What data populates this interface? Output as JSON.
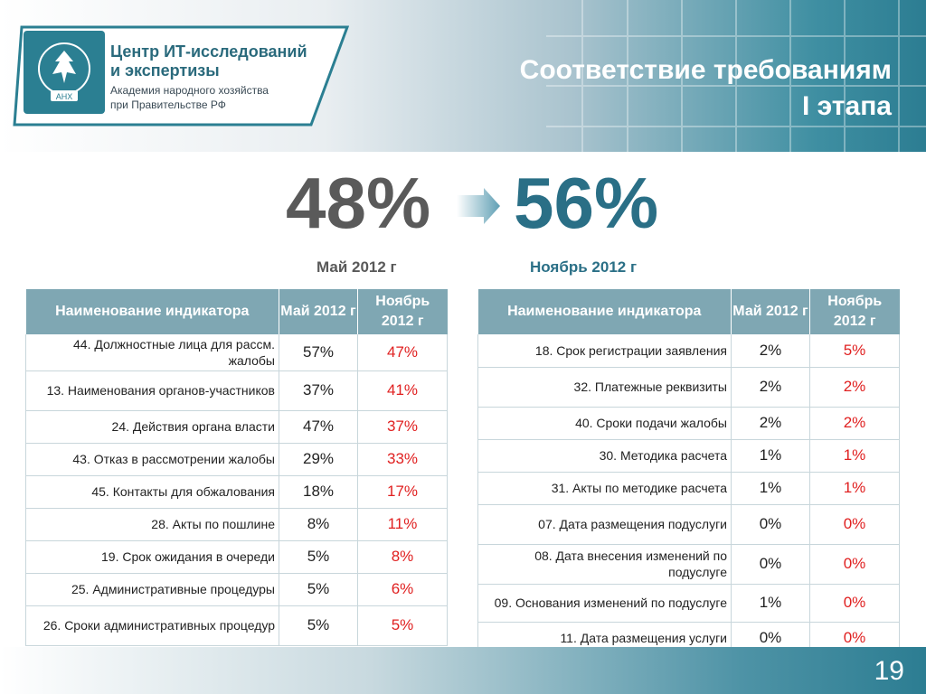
{
  "logo": {
    "line1": "Центр ИТ-исследований",
    "line2": "и экспертизы",
    "line3": "Академия народного хозяйства",
    "line4": "при Правительстве РФ",
    "emblem_text": "АНХ"
  },
  "title": {
    "line1": "Соответствие требованиям",
    "line2": "I этапа"
  },
  "summary": {
    "from_value": "48%",
    "to_value": "56%",
    "from_label": "Май 2012 г",
    "to_label": "Ноябрь 2012 г"
  },
  "table_headers": {
    "name": "Наименование индикатора",
    "may": "Май 2012 г",
    "nov": "Ноябрь 2012 г"
  },
  "left_rows": [
    {
      "name": "44. Должностные лица для рассм. жалобы",
      "may": "57%",
      "nov": "47%"
    },
    {
      "name": "13. Наименования органов-участников",
      "may": "37%",
      "nov": "41%"
    },
    {
      "name": "24. Действия органа власти",
      "may": "47%",
      "nov": "37%"
    },
    {
      "name": "43. Отказ в рассмотрении жалобы",
      "may": "29%",
      "nov": "33%"
    },
    {
      "name": "45. Контакты для обжалования",
      "may": "18%",
      "nov": "17%"
    },
    {
      "name": "28. Акты по пошлине",
      "may": "8%",
      "nov": "11%"
    },
    {
      "name": "19. Срок ожидания в очереди",
      "may": "5%",
      "nov": "8%"
    },
    {
      "name": "25. Административные процедуры",
      "may": "5%",
      "nov": "6%"
    },
    {
      "name": "26. Сроки административных процедур",
      "may": "5%",
      "nov": "5%"
    }
  ],
  "right_rows": [
    {
      "name": "18. Срок регистрации заявления",
      "may": "2%",
      "nov": "5%"
    },
    {
      "name": "32. Платежные реквизиты",
      "may": "2%",
      "nov": "2%"
    },
    {
      "name": "40. Сроки подачи жалобы",
      "may": "2%",
      "nov": "2%"
    },
    {
      "name": "30. Методика расчета",
      "may": "1%",
      "nov": "1%"
    },
    {
      "name": "31. Акты по методике расчета",
      "may": "1%",
      "nov": "1%"
    },
    {
      "name": "07. Дата размещения подуслуги",
      "may": "0%",
      "nov": "0%"
    },
    {
      "name": "08. Дата внесения изменений по подуслуге",
      "may": "0%",
      "nov": "0%"
    },
    {
      "name": "09. Основания изменений по подуслуге",
      "may": "1%",
      "nov": "0%"
    },
    {
      "name": "11. Дата размещения услуги",
      "may": "0%",
      "nov": "0%"
    }
  ],
  "page_number": "19"
}
